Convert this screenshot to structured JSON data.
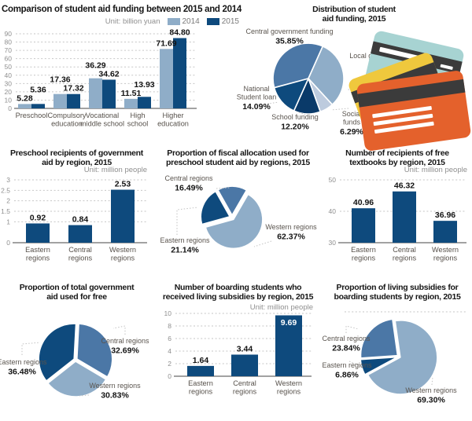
{
  "colors": {
    "light": "#8FADC8",
    "mid": "#4B77A6",
    "dark": "#0E4A7D",
    "navy": "#0A3A69",
    "pale": "#BDCBDE"
  },
  "cards": {
    "teal": "#A7D3D2",
    "yellow": "#EFC83D",
    "orange": "#E4612C",
    "stripe": "#3B3B3B"
  },
  "chart_data": [
    {
      "type": "bar",
      "title": "Comparison of student aid funding between 2015 and 2014",
      "unit": "Unit: billion yuan",
      "categories": [
        [
          "Preschool"
        ],
        [
          "Compulsory",
          "education"
        ],
        [
          "Vocational",
          "middle school"
        ],
        [
          "High",
          "school"
        ],
        [
          "Higher",
          "education"
        ]
      ],
      "series": [
        {
          "name": "2014",
          "color": "light",
          "values": [
            "5.28",
            "17.36",
            "36.29",
            "11.51",
            "71.69"
          ]
        },
        {
          "name": "2015",
          "color": "dark",
          "values": [
            "5.36",
            "17.32",
            "34.62",
            "13.93",
            "84.80"
          ]
        }
      ],
      "ylim": [
        0,
        90
      ],
      "yticks": [
        0,
        10,
        20,
        30,
        40,
        50,
        60,
        70,
        80,
        90
      ],
      "grid": "dotted",
      "legend_position": "top-right"
    },
    {
      "type": "pie",
      "title": "Distribution of student\naid funding, 2015",
      "start_deg": 254.9,
      "slices": [
        {
          "label": "Central government funding",
          "label_lines": [
            "Central government funding"
          ],
          "value": 35.85,
          "pct": "35.85%",
          "color": "mid"
        },
        {
          "label": "Local government funding",
          "label_lines": [
            "Local government funding"
          ],
          "value": 31.56,
          "pct": "31.56%",
          "color": "light"
        },
        {
          "label": "Social funds",
          "label_lines": [
            "Social",
            "funds"
          ],
          "value": 6.29,
          "pct": "6.29%",
          "color": "pale"
        },
        {
          "label": "School funding",
          "label_lines": [
            "School funding"
          ],
          "value": 12.2,
          "pct": "12.20%",
          "color": "navy"
        },
        {
          "label": "National Student loan",
          "label_lines": [
            "National",
            "Student loan"
          ],
          "value": 14.09,
          "pct": "14.09%",
          "color": "dark"
        }
      ]
    },
    {
      "type": "bar",
      "title": "Preschool recipients of government\naid by region, 2015",
      "unit": "Unit: million people",
      "categories": [
        [
          "Eastern",
          "regions"
        ],
        [
          "Central",
          "regions"
        ],
        [
          "Western",
          "regions"
        ]
      ],
      "color": "dark",
      "values": [
        "0.92",
        "0.84",
        "2.53"
      ],
      "ylim": [
        0,
        3
      ],
      "yticks": [
        0,
        1,
        1.5,
        2,
        2.5,
        3
      ],
      "grid": "dotted"
    },
    {
      "type": "pie",
      "title": "Proportion of fiscal allocation used for\npreschool student aid by regions, 2015",
      "start_deg": 30,
      "exploded": true,
      "slices": [
        {
          "label": "Western regions",
          "label_lines": [
            "Western regions"
          ],
          "value": 62.37,
          "pct": "62.37%",
          "color": "light"
        },
        {
          "label": "Eastern regions",
          "label_lines": [
            "Eastern regions"
          ],
          "value": 21.14,
          "pct": "21.14%",
          "color": "dark"
        },
        {
          "label": "Central regions",
          "label_lines": [
            "Central regions"
          ],
          "value": 16.49,
          "pct": "16.49%",
          "color": "mid"
        }
      ]
    },
    {
      "type": "bar",
      "title": "Number of recipients of free\ntextbooks by region, 2015",
      "unit": "Unit: million people",
      "categories": [
        [
          "Eastern",
          "regions"
        ],
        [
          "Central",
          "regions"
        ],
        [
          "Western",
          "regions"
        ]
      ],
      "color": "dark",
      "values": [
        "40.96",
        "46.32",
        "36.96"
      ],
      "ylim": [
        30,
        50
      ],
      "yticks": [
        30,
        40,
        50
      ],
      "grid": "dotted"
    },
    {
      "type": "pie",
      "title": "Proportion of total government\naid used for free",
      "start_deg": 3,
      "exploded": true,
      "slices": [
        {
          "label": "Central regions",
          "label_lines": [
            "Central regions"
          ],
          "value": 32.69,
          "pct": "32.69%",
          "color": "mid"
        },
        {
          "label": "Western regions",
          "label_lines": [
            "Western regions"
          ],
          "value": 30.83,
          "pct": "30.83%",
          "color": "light"
        },
        {
          "label": "Eastern regions",
          "label_lines": [
            "Eastern regions"
          ],
          "value": 36.48,
          "pct": "36.48%",
          "color": "dark"
        }
      ]
    },
    {
      "type": "bar",
      "title": "Number of boarding students who\nreceived living subsidies by region, 2015",
      "unit": "Unit: million people",
      "categories": [
        [
          "Eastern",
          "regions"
        ],
        [
          "Central",
          "regions"
        ],
        [
          "Western",
          "regions"
        ]
      ],
      "color": "dark",
      "values": [
        "1.64",
        "3.44",
        "9.69"
      ],
      "inside": [
        false,
        false,
        true
      ],
      "ylim": [
        0,
        10
      ],
      "yticks": [
        0,
        2,
        4,
        6,
        8,
        10
      ],
      "grid": "dotted"
    },
    {
      "type": "pie",
      "title": "Proportion of living subsidies for\nboarding students by region, 2015",
      "start_deg": 352,
      "exploded": true,
      "slices": [
        {
          "label": "Western regions",
          "label_lines": [
            "Western regions"
          ],
          "value": 69.3,
          "pct": "69.30%",
          "color": "light"
        },
        {
          "label": "Eastern regions",
          "label_lines": [
            "Eastern regions"
          ],
          "value": 6.86,
          "pct": "6.86%",
          "color": "dark"
        },
        {
          "label": "Central regions",
          "label_lines": [
            "Central regions"
          ],
          "value": 23.84,
          "pct": "23.84%",
          "color": "mid"
        }
      ]
    }
  ]
}
